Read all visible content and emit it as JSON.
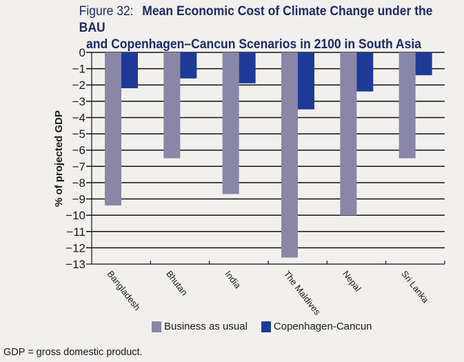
{
  "figure": {
    "number_label": "Figure 32:",
    "title_line1": "Mean Economic Cost of Climate Change under the BAU",
    "title_line2": "and Copenhagen–Cancun Scenarios in 2100 in South Asia",
    "note": "GDP = gross domestic product."
  },
  "chart_data": {
    "type": "bar",
    "title": "Mean Economic Cost of Climate Change under the BAU and Copenhagen–Cancun Scenarios in 2100 in South Asia",
    "xlabel": "",
    "ylabel": "% of projected GDP",
    "ylim": [
      -13,
      0
    ],
    "yticks": [
      0,
      -1,
      -2,
      -3,
      -4,
      -5,
      -6,
      -7,
      -8,
      -9,
      -10,
      -11,
      -12,
      -13
    ],
    "ytick_labels": [
      "0",
      "−1",
      "−2",
      "−3",
      "−4",
      "−5",
      "−6",
      "−7",
      "−8",
      "−9",
      "−10",
      "−11",
      "−12",
      "−13"
    ],
    "grid": true,
    "categories": [
      "Bangladesh",
      "Bhutan",
      "India",
      "The Maldives",
      "Nepal",
      "Sri Lanka"
    ],
    "series": [
      {
        "name": "Business as usual",
        "color": "#8a86a6",
        "values": [
          -9.4,
          -6.5,
          -8.7,
          -12.6,
          -10.0,
          -6.5
        ]
      },
      {
        "name": "Copenhagen-Cancun",
        "color": "#1f3a96",
        "values": [
          -2.2,
          -1.6,
          -1.9,
          -3.5,
          -2.4,
          -1.4
        ]
      }
    ],
    "legend_position": "bottom"
  }
}
